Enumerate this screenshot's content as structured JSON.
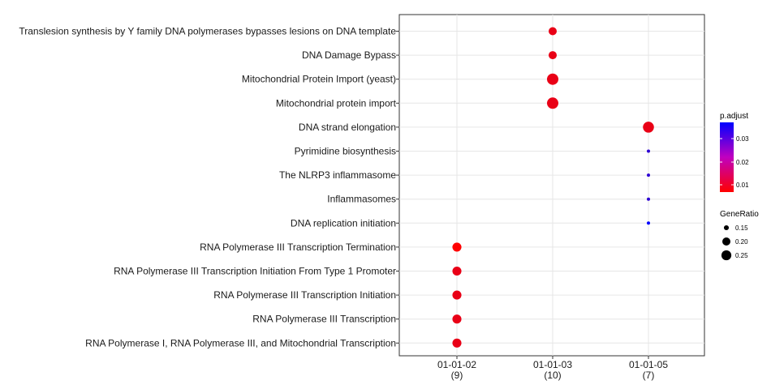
{
  "chart_data": {
    "type": "scatter",
    "title": "",
    "xlabel": "",
    "ylabel": "",
    "grid": true,
    "legend_position": "right",
    "x_categories": [
      {
        "label": "01-01-02",
        "count": "(9)"
      },
      {
        "label": "01-01-03",
        "count": "(10)"
      },
      {
        "label": "01-01-05",
        "count": "(7)"
      }
    ],
    "y_categories": [
      "Translesion synthesis by Y family DNA polymerases bypasses lesions on DNA template",
      "DNA Damage Bypass",
      "Mitochondrial Protein Import (yeast)",
      "Mitochondrial protein import",
      "DNA strand elongation",
      "Pyrimidine biosynthesis",
      "The NLRP3 inflammasome",
      "Inflammasomes",
      "DNA replication initiation",
      "RNA Polymerase III Transcription Termination",
      "RNA Polymerase III Transcription Initiation From Type 1 Promoter",
      "RNA Polymerase III Transcription Initiation",
      "RNA Polymerase III Transcription",
      "RNA Polymerase I, RNA Polymerase III, and Mitochondrial Transcription"
    ],
    "points": [
      {
        "x": "01-01-03",
        "y": "Translesion synthesis by Y family DNA polymerases bypasses lesions on DNA template",
        "GeneRatio": 0.2,
        "p_adjust": 0.004
      },
      {
        "x": "01-01-03",
        "y": "DNA Damage Bypass",
        "GeneRatio": 0.2,
        "p_adjust": 0.004
      },
      {
        "x": "01-01-03",
        "y": "Mitochondrial Protein Import (yeast)",
        "GeneRatio": 0.3,
        "p_adjust": 0.004
      },
      {
        "x": "01-01-03",
        "y": "Mitochondrial protein import",
        "GeneRatio": 0.3,
        "p_adjust": 0.004
      },
      {
        "x": "01-01-05",
        "y": "DNA strand elongation",
        "GeneRatio": 0.286,
        "p_adjust": 0.004
      },
      {
        "x": "01-01-05",
        "y": "Pyrimidine biosynthesis",
        "GeneRatio": 0.143,
        "p_adjust": 0.03
      },
      {
        "x": "01-01-05",
        "y": "The NLRP3 inflammasome",
        "GeneRatio": 0.143,
        "p_adjust": 0.03
      },
      {
        "x": "01-01-05",
        "y": "Inflammasomes",
        "GeneRatio": 0.143,
        "p_adjust": 0.03
      },
      {
        "x": "01-01-05",
        "y": "DNA replication initiation",
        "GeneRatio": 0.143,
        "p_adjust": 0.036
      },
      {
        "x": "01-01-02",
        "y": "RNA Polymerase III Transcription Termination",
        "GeneRatio": 0.222,
        "p_adjust": 0.001
      },
      {
        "x": "01-01-02",
        "y": "RNA Polymerase III Transcription Initiation From Type 1 Promoter",
        "GeneRatio": 0.222,
        "p_adjust": 0.004
      },
      {
        "x": "01-01-02",
        "y": "RNA Polymerase III Transcription Initiation",
        "GeneRatio": 0.222,
        "p_adjust": 0.004
      },
      {
        "x": "01-01-02",
        "y": "RNA Polymerase III Transcription",
        "GeneRatio": 0.222,
        "p_adjust": 0.004
      },
      {
        "x": "01-01-02",
        "y": "RNA Polymerase I, RNA Polymerase III, and Mitochondrial Transcription",
        "GeneRatio": 0.222,
        "p_adjust": 0.004
      }
    ],
    "color_legend": {
      "title": "p.adjust",
      "low_color": "#ff0000",
      "high_color": "#0000ff",
      "range": [
        0.001,
        0.036
      ],
      "ticks": [
        "0.03",
        "0.02",
        "0.01"
      ]
    },
    "size_legend": {
      "title": "GeneRatio",
      "range": [
        0.143,
        0.3
      ],
      "ticks": [
        "0.15",
        "0.20",
        "0.25"
      ]
    }
  }
}
